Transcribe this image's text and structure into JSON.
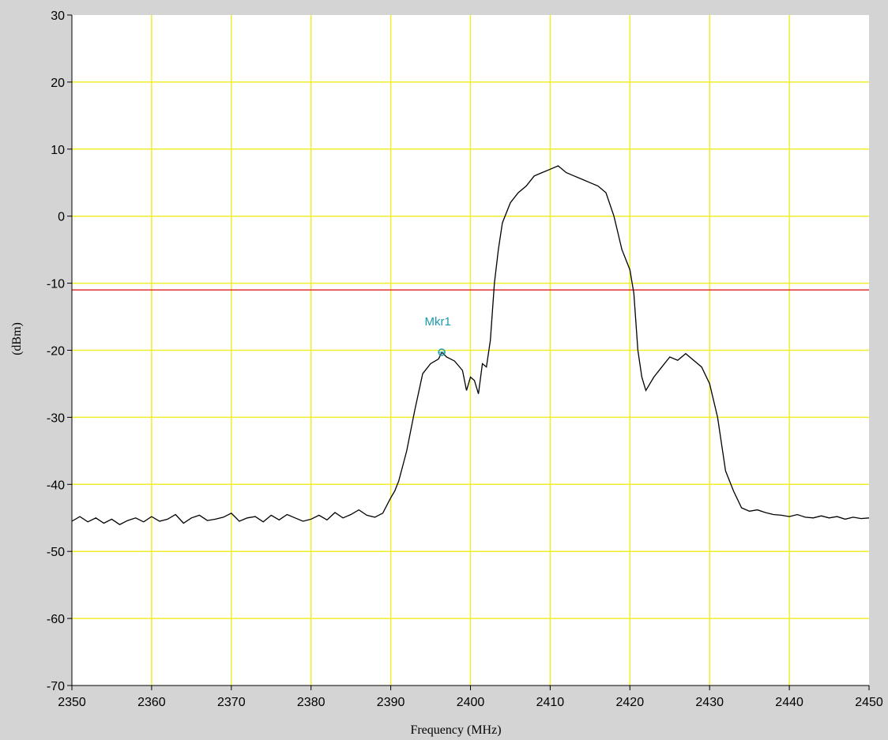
{
  "chart_data": {
    "type": "line",
    "title": "",
    "xlabel": "Frequency (MHz)",
    "ylabel": "(dBm)",
    "xlim": [
      2350,
      2450
    ],
    "ylim": [
      -70,
      30
    ],
    "x_ticks": [
      "2350",
      "2360",
      "2370",
      "2380",
      "2390",
      "2400",
      "2410",
      "2420",
      "2430",
      "2440",
      "2450"
    ],
    "y_ticks": [
      "30",
      "20",
      "10",
      "0",
      "-10",
      "-20",
      "-30",
      "-40",
      "-50",
      "-60",
      "-70"
    ],
    "grid": true,
    "threshold_line": {
      "value": -11,
      "color": "#e03030"
    },
    "marker": {
      "label": "Mkr1",
      "x": 2396.4,
      "y": -20.3,
      "color": "#1a9ab0"
    },
    "series": [
      {
        "color": "#000000",
        "x": [
          2350,
          2351,
          2352,
          2353,
          2354,
          2355,
          2356,
          2357,
          2358,
          2359,
          2360,
          2361,
          2362,
          2363,
          2364,
          2365,
          2366,
          2367,
          2368,
          2369,
          2370,
          2371,
          2372,
          2373,
          2374,
          2375,
          2376,
          2377,
          2378,
          2379,
          2380,
          2381,
          2382,
          2383,
          2384,
          2385,
          2386,
          2387,
          2388,
          2389,
          2390,
          2390.5,
          2391,
          2392,
          2393,
          2394,
          2395,
          2396,
          2396.4,
          2397,
          2398,
          2399,
          2399.5,
          2400,
          2400.5,
          2401,
          2401.5,
          2402,
          2402.5,
          2403,
          2403.5,
          2404,
          2405,
          2406,
          2407,
          2408,
          2409,
          2410,
          2411,
          2412,
          2413,
          2414,
          2415,
          2416,
          2417,
          2418,
          2419,
          2420,
          2420.5,
          2421,
          2421.5,
          2422,
          2423,
          2424,
          2425,
          2426,
          2427,
          2428,
          2429,
          2430,
          2431,
          2432,
          2433,
          2434,
          2435,
          2436,
          2437,
          2438,
          2439,
          2440,
          2441,
          2442,
          2443,
          2444,
          2445,
          2446,
          2447,
          2448,
          2449,
          2450
        ],
        "y": [
          -45.5,
          -44.8,
          -45.6,
          -45.0,
          -45.8,
          -45.2,
          -46.0,
          -45.4,
          -45.0,
          -45.6,
          -44.8,
          -45.5,
          -45.2,
          -44.5,
          -45.8,
          -45.0,
          -44.6,
          -45.4,
          -45.2,
          -44.9,
          -44.3,
          -45.5,
          -45.0,
          -44.8,
          -45.6,
          -44.6,
          -45.3,
          -44.5,
          -45.0,
          -45.5,
          -45.2,
          -44.6,
          -45.3,
          -44.2,
          -45.0,
          -44.5,
          -43.8,
          -44.6,
          -44.9,
          -44.3,
          -42.0,
          -41.0,
          -39.5,
          -35.0,
          -29.0,
          -23.5,
          -22.0,
          -21.3,
          -20.3,
          -21.0,
          -21.6,
          -23.0,
          -26.0,
          -24.0,
          -24.5,
          -26.5,
          -22.0,
          -22.5,
          -18.5,
          -10.0,
          -5.0,
          -1.0,
          2.0,
          3.5,
          4.5,
          6.0,
          6.5,
          7.0,
          7.5,
          6.5,
          6.0,
          5.5,
          5.0,
          4.5,
          3.5,
          0.0,
          -5.0,
          -8.0,
          -11.5,
          -20.0,
          -24.0,
          -26.0,
          -24.0,
          -22.5,
          -21.0,
          -21.5,
          -20.5,
          -21.5,
          -22.5,
          -25.0,
          -30.0,
          -38.0,
          -41.0,
          -43.5,
          -44.0,
          -43.8,
          -44.2,
          -44.5,
          -44.6,
          -44.8,
          -44.5,
          -44.9,
          -45.0,
          -44.7,
          -45.0,
          -44.8,
          -45.2,
          -44.9,
          -45.1,
          -45.0
        ]
      }
    ]
  }
}
